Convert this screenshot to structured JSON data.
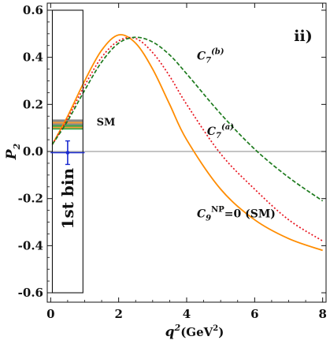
{
  "chart_data": {
    "type": "line",
    "panel_label": "ii)",
    "xlabel": {
      "base": "q",
      "sup": "2",
      "unit": "(GeV",
      "unit_sup": "2",
      "unit_end": ")"
    },
    "ylabel": {
      "base": "P",
      "sub": "2"
    },
    "xlim": [
      -0.1,
      8.1
    ],
    "ylim": [
      -0.64,
      0.63
    ],
    "x_ticks": [
      0,
      2,
      4,
      6,
      8
    ],
    "x_tick_labels": [
      "0",
      "2",
      "4",
      "6",
      "8"
    ],
    "y_ticks": [
      -0.6,
      -0.4,
      -0.2,
      0.0,
      0.2,
      0.4,
      0.6
    ],
    "y_tick_labels": [
      "-0.6",
      "-0.4",
      "-0.2",
      "0.0",
      "0.2",
      "0.4",
      "0.6"
    ],
    "grid": false,
    "zero_line": true,
    "series": [
      {
        "color": "#ff8c00",
        "style": "solid",
        "x": [
          0.05,
          0.5,
          1.0,
          1.5,
          2.0,
          2.5,
          3.0,
          3.5,
          4.0,
          5.0,
          6.0,
          7.0,
          8.0
        ],
        "y": [
          0.03,
          0.15,
          0.3,
          0.43,
          0.495,
          0.46,
          0.35,
          0.2,
          0.05,
          -0.16,
          -0.29,
          -0.37,
          -0.42
        ]
      },
      {
        "color": "#e8141e",
        "style": "dotted",
        "x": [
          0.05,
          0.5,
          1.0,
          1.5,
          2.0,
          2.5,
          3.0,
          3.5,
          4.0,
          5.0,
          6.0,
          7.0,
          8.0
        ],
        "y": [
          0.03,
          0.14,
          0.28,
          0.4,
          0.47,
          0.48,
          0.42,
          0.32,
          0.2,
          -0.01,
          -0.16,
          -0.29,
          -0.38
        ]
      },
      {
        "color": "#1d7a1d",
        "style": "dashed",
        "x": [
          0.05,
          0.5,
          1.0,
          1.5,
          2.0,
          2.5,
          3.0,
          3.5,
          4.0,
          5.0,
          6.0,
          7.0,
          8.0
        ],
        "y": [
          0.03,
          0.13,
          0.26,
          0.38,
          0.46,
          0.485,
          0.465,
          0.41,
          0.33,
          0.16,
          0.01,
          -0.11,
          -0.21
        ]
      }
    ],
    "sm_band": {
      "x_range": [
        0.05,
        0.95
      ],
      "stripes": [
        {
          "y": 0.098,
          "color": "#3aa84a"
        },
        {
          "y": 0.104,
          "color": "#f59b3a"
        },
        {
          "y": 0.11,
          "color": "#3aa84a"
        },
        {
          "y": 0.117,
          "color": "#8a8a8a"
        },
        {
          "y": 0.124,
          "color": "#f59b3a"
        },
        {
          "y": 0.131,
          "color": "#8a8a8a"
        }
      ]
    },
    "measurement": {
      "x": 0.5,
      "y": -0.005,
      "x_err": 0.5,
      "y_err": 0.05,
      "color": "#1a2ad0"
    },
    "bin_box": {
      "x_range": [
        0.05,
        0.95
      ],
      "y_range": [
        -0.6,
        0.6
      ],
      "label": "1st bin"
    },
    "annotations": {
      "c7b": {
        "base": "C",
        "sub": "7",
        "sup": "(b)"
      },
      "c7a": {
        "base": "C",
        "sub": "7",
        "sup": "(a)"
      },
      "c9": {
        "base": "C",
        "sub": "9",
        "sup": "NP",
        "rest": "=0 (SM)"
      },
      "sm": "SM"
    }
  }
}
